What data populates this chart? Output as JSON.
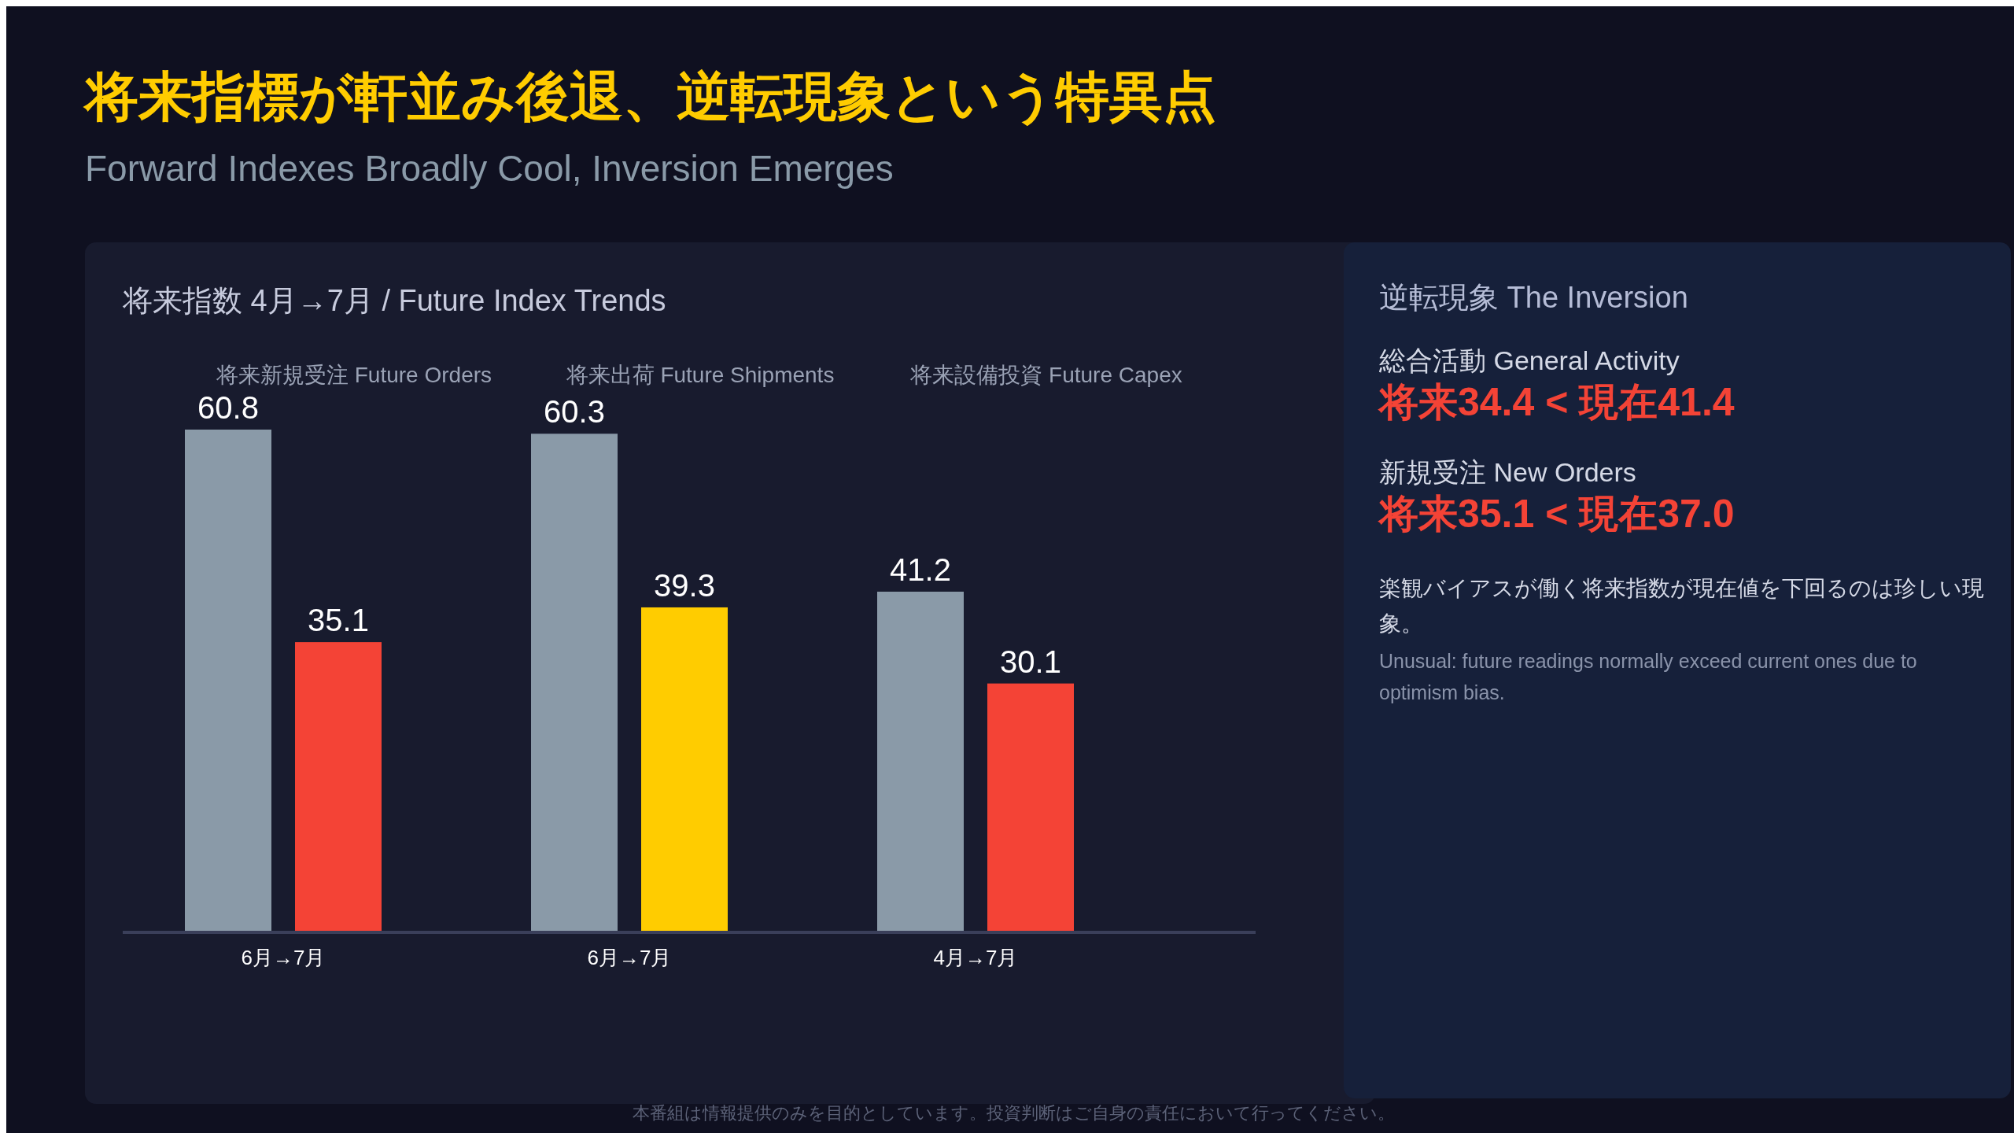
{
  "chart_data": {
    "type": "bar",
    "title": "将来指標が軒並み後退、逆転現象という特異点",
    "subtitle": "Forward Indexes Broadly Cool, Inversion Emerges",
    "categories": [
      "6月→7月",
      "6月→7月",
      "4月→7月"
    ],
    "series": [
      {
        "color": "#8a9aa8",
        "values": [
          60.8,
          60.3,
          41.2
        ]
      },
      {
        "colors": [
          "#f44336",
          "#ffcc00",
          "#f44336"
        ],
        "values": [
          35.1,
          39.3,
          30.1
        ]
      }
    ],
    "data_labels": true,
    "annotations": [
      "将来指数 4月→7月 / Future Index Trends",
      "将来新規受注 Future Orders",
      "将来出荷 Future Shipments",
      "将来設備投資 Future Capex",
      "逆転現象 The Inversion",
      "総合活動 General Activity",
      "将来34.4 < 現在41.4",
      "新規受注 New Orders",
      "将来35.1 < 現在37.0",
      "楽観バイアスが働く将来指数が現在値を下回るのは珍しい現象。",
      "Unusual: future readings normally exceed current ones due to optimism bias.",
      "本番組は情報提供のみを目的としています。投資判断はご自身の責任において行ってください。"
    ]
  }
}
